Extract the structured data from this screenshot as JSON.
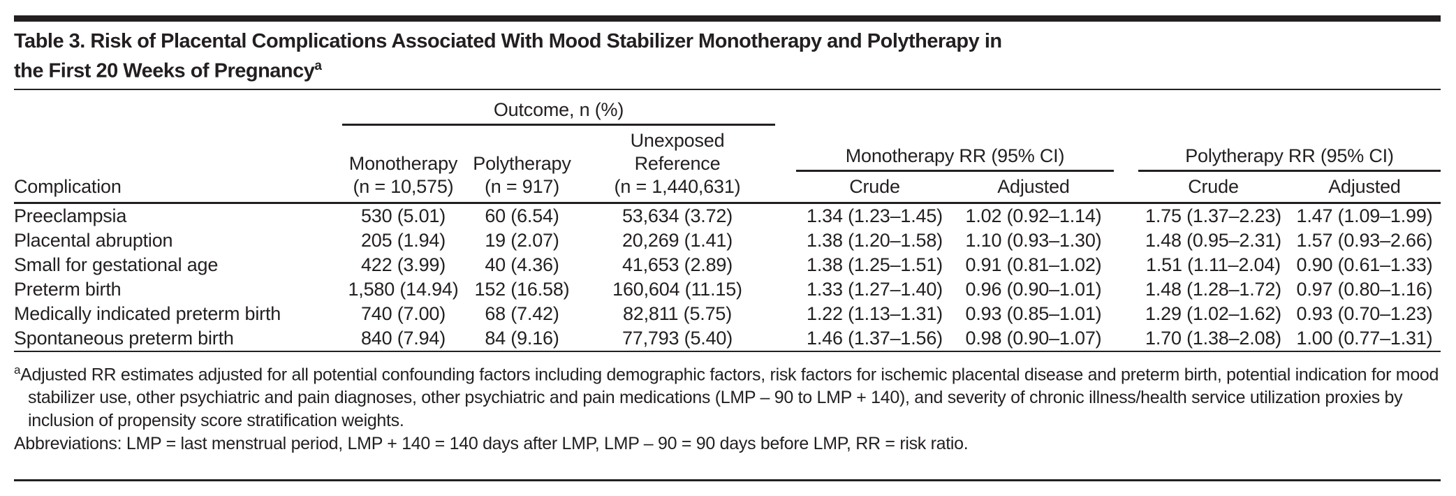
{
  "colors": {
    "text": "#231f20",
    "rule": "#231f20",
    "background": "#ffffff"
  },
  "title": {
    "line1": "Table 3. Risk of Placental Complications Associated With Mood Stabilizer Monotherapy and Polytherapy in",
    "line2": "the First 20 Weeks of Pregnancy",
    "footnote_marker": "a"
  },
  "header": {
    "complication": "Complication",
    "outcome_spanner": "Outcome, n (%)",
    "monotherapy": {
      "label": "Monotherapy",
      "n": "(n = 10,575)"
    },
    "polytherapy": {
      "label": "Polytherapy",
      "n": "(n = 917)"
    },
    "unexposed": {
      "label_line1": "Unexposed",
      "label_line2": "Reference",
      "n": "(n = 1,440,631)"
    },
    "mono_rr_spanner": "Monotherapy RR (95% CI)",
    "poly_rr_spanner": "Polytherapy RR (95% CI)",
    "crude": "Crude",
    "adjusted": "Adjusted"
  },
  "rows": [
    {
      "complication": "Preeclampsia",
      "mono": "530 (5.01)",
      "poly": "60 (6.54)",
      "unexposed": "53,634 (3.72)",
      "mono_crude": "1.34 (1.23–1.45)",
      "mono_adjusted": "1.02 (0.92–1.14)",
      "poly_crude": "1.75 (1.37–2.23)",
      "poly_adjusted": "1.47 (1.09–1.99)"
    },
    {
      "complication": "Placental abruption",
      "mono": "205 (1.94)",
      "poly": "19 (2.07)",
      "unexposed": "20,269 (1.41)",
      "mono_crude": "1.38 (1.20–1.58)",
      "mono_adjusted": "1.10 (0.93–1.30)",
      "poly_crude": "1.48 (0.95–2.31)",
      "poly_adjusted": "1.57 (0.93–2.66)"
    },
    {
      "complication": "Small for gestational age",
      "mono": "422 (3.99)",
      "poly": "40 (4.36)",
      "unexposed": "41,653 (2.89)",
      "mono_crude": "1.38 (1.25–1.51)",
      "mono_adjusted": "0.91 (0.81–1.02)",
      "poly_crude": "1.51 (1.11–2.04)",
      "poly_adjusted": "0.90 (0.61–1.33)"
    },
    {
      "complication": "Preterm birth",
      "mono": "1,580 (14.94)",
      "poly": "152 (16.58)",
      "unexposed": "160,604 (11.15)",
      "mono_crude": "1.33 (1.27–1.40)",
      "mono_adjusted": "0.96 (0.90–1.01)",
      "poly_crude": "1.48 (1.28–1.72)",
      "poly_adjusted": "0.97 (0.80–1.16)"
    },
    {
      "complication": "Medically indicated preterm birth",
      "mono": "740 (7.00)",
      "poly": "68 (7.42)",
      "unexposed": "82,811 (5.75)",
      "mono_crude": "1.22 (1.13–1.31)",
      "mono_adjusted": "0.93 (0.85–1.01)",
      "poly_crude": "1.29 (1.02–1.62)",
      "poly_adjusted": "0.93 (0.70–1.23)"
    },
    {
      "complication": "Spontaneous preterm birth",
      "mono": "840 (7.94)",
      "poly": "84 (9.16)",
      "unexposed": "77,793 (5.40)",
      "mono_crude": "1.46 (1.37–1.56)",
      "mono_adjusted": "0.98 (0.90–1.07)",
      "poly_crude": "1.70 (1.38–2.08)",
      "poly_adjusted": "1.00 (0.77–1.31)"
    }
  ],
  "footnotes": {
    "a_marker": "a",
    "a_text": "Adjusted RR estimates adjusted for all potential confounding factors including demographic factors, risk factors for ischemic placental disease and preterm birth, potential indication for mood stabilizer use, other psychiatric and pain diagnoses, other psychiatric and pain medications (LMP – 90 to LMP + 140), and severity of chronic illness/health service utilization proxies by inclusion of propensity score stratification weights.",
    "abbreviations": "Abbreviations: LMP = last menstrual period, LMP + 140 = 140 days after LMP, LMP – 90 = 90 days before LMP, RR = risk ratio."
  }
}
